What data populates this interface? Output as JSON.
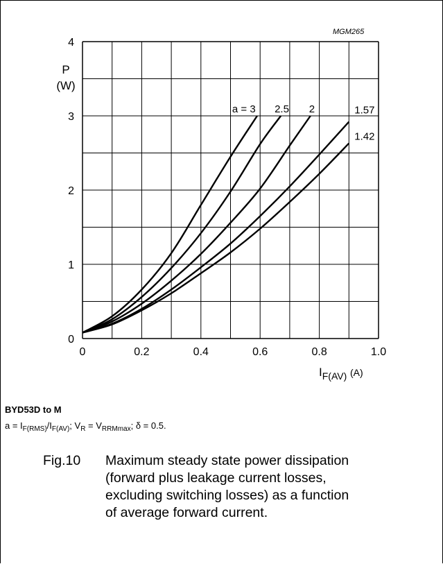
{
  "figure_ref": "MGM265",
  "note_title": "BYD53D to M",
  "note_parts": [
    {
      "t": "a = I"
    },
    {
      "s": "F(RMS)"
    },
    {
      "t": "/I"
    },
    {
      "s": "F(AV)"
    },
    {
      "t": "; V"
    },
    {
      "s": "R"
    },
    {
      "t": " = V"
    },
    {
      "s": "RRMmax"
    },
    {
      "t": "; δ = 0.5."
    }
  ],
  "caption": {
    "number": "Fig.10",
    "lines": [
      "Maximum steady state power dissipation",
      "(forward plus leakage current losses,",
      "excluding switching losses) as a function",
      "of average forward current."
    ]
  },
  "chart_data": {
    "type": "line",
    "ylabel_symbol": "P",
    "ylabel_unit": "(W)",
    "xlabel_main": "I",
    "xlabel_sub": "F(AV)",
    "xlabel_unit": "(A)",
    "xlim": [
      0,
      1.0
    ],
    "ylim": [
      0,
      4
    ],
    "x_ticks": [
      0,
      0.1,
      0.2,
      0.3,
      0.4,
      0.5,
      0.6,
      0.7,
      0.8,
      0.9,
      1.0
    ],
    "x_tick_labels": [
      "0",
      "",
      "0.2",
      "",
      "0.4",
      "",
      "0.6",
      "",
      "0.8",
      "",
      "1.0"
    ],
    "y_ticks": [
      0,
      0.5,
      1,
      1.5,
      2,
      2.5,
      3,
      3.5,
      4
    ],
    "y_tick_labels": [
      "0",
      "",
      "1",
      "",
      "2",
      "",
      "3",
      "",
      "4"
    ],
    "grid": true,
    "series": [
      {
        "name": "a = 3",
        "x": [
          0,
          0.1,
          0.2,
          0.3,
          0.4,
          0.5,
          0.59
        ],
        "y": [
          0.08,
          0.3,
          0.66,
          1.15,
          1.8,
          2.45,
          3.0
        ]
      },
      {
        "name": "2.5",
        "x": [
          0,
          0.1,
          0.2,
          0.3,
          0.4,
          0.5,
          0.6,
          0.67
        ],
        "y": [
          0.08,
          0.26,
          0.56,
          0.95,
          1.42,
          1.98,
          2.62,
          3.0
        ]
      },
      {
        "name": "2",
        "x": [
          0,
          0.1,
          0.2,
          0.3,
          0.4,
          0.5,
          0.6,
          0.7,
          0.77
        ],
        "y": [
          0.08,
          0.23,
          0.47,
          0.78,
          1.14,
          1.56,
          2.02,
          2.6,
          3.0
        ]
      },
      {
        "name": "1.57",
        "x": [
          0,
          0.1,
          0.2,
          0.3,
          0.4,
          0.5,
          0.6,
          0.7,
          0.8,
          0.9
        ],
        "y": [
          0.08,
          0.2,
          0.4,
          0.66,
          0.96,
          1.28,
          1.65,
          2.05,
          2.48,
          2.92
        ]
      },
      {
        "name": "1.42",
        "x": [
          0,
          0.1,
          0.2,
          0.3,
          0.4,
          0.5,
          0.6,
          0.7,
          0.8,
          0.9
        ],
        "y": [
          0.08,
          0.19,
          0.38,
          0.61,
          0.88,
          1.16,
          1.48,
          1.84,
          2.22,
          2.63
        ]
      }
    ]
  }
}
